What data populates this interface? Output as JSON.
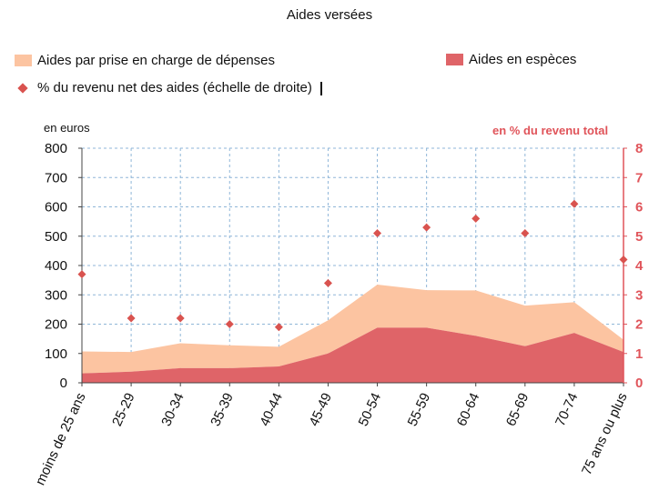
{
  "colors": {
    "aides_prise_en_charge": "#fcc4a1",
    "aides_especes": "#df6468",
    "pct_marker": "#d9534f",
    "right_axis": "#e0545a",
    "grid": "#8fb6d8",
    "axis": "#444444"
  },
  "chart_data": {
    "type": "area",
    "title": "Aides versées",
    "ylabel": "en euros",
    "y2label": "en % du revenu total",
    "ylim": [
      0,
      800
    ],
    "y2lim": [
      0,
      8
    ],
    "yticks": [
      "0",
      "100",
      "200",
      "300",
      "400",
      "500",
      "600",
      "700",
      "800"
    ],
    "y2ticks": [
      "0",
      "1",
      "2",
      "3",
      "4",
      "5",
      "6",
      "7",
      "8"
    ],
    "categories": [
      "moins de 25 ans",
      "25-29",
      "30-34",
      "35-39",
      "40-44",
      "45-49",
      "50-54",
      "55-59",
      "60-64",
      "65-69",
      "70-74",
      "75 ans ou plus"
    ],
    "series": [
      {
        "name": "Aides en espèces",
        "type": "area",
        "axis": "left",
        "values": [
          32,
          38,
          50,
          50,
          56,
          100,
          188,
          188,
          160,
          125,
          170,
          105
        ]
      },
      {
        "name": "Aides par prise en charge de dépenses",
        "type": "area-stacked",
        "axis": "left",
        "values": [
          75,
          67,
          85,
          78,
          67,
          113,
          147,
          128,
          155,
          138,
          105,
          42
        ]
      },
      {
        "name": "% du revenu net des aides (échelle de droite)",
        "type": "scatter",
        "axis": "right",
        "values": [
          3.7,
          2.2,
          2.2,
          2.0,
          1.9,
          3.4,
          5.1,
          5.3,
          5.6,
          5.1,
          6.1,
          4.2
        ]
      }
    ],
    "grid": true,
    "legend": "top"
  }
}
